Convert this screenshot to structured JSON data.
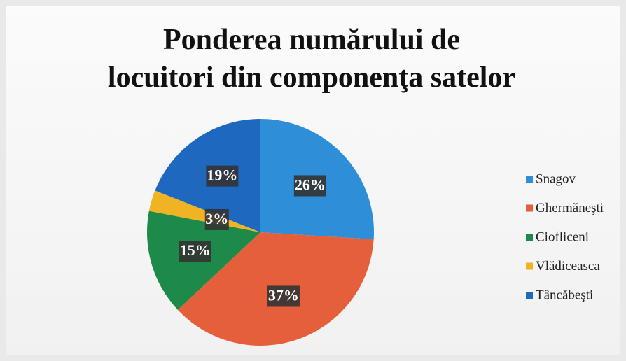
{
  "chart_data": {
    "type": "pie",
    "title": "Ponderea numărului de locuitori din componenţa satelor",
    "categories": [
      "Snagov",
      "Ghermăneşti",
      "Ciofliceni",
      "Vlădiceasca",
      "Tâncăbeşti"
    ],
    "values": [
      26,
      37,
      15,
      3,
      19
    ],
    "value_labels": [
      "26%",
      "37%",
      "15%",
      "3%",
      "19%"
    ],
    "colors": [
      "#2e8fd8",
      "#e5603a",
      "#1e8a4a",
      "#f0b323",
      "#1f68c0"
    ],
    "legend": "right"
  }
}
